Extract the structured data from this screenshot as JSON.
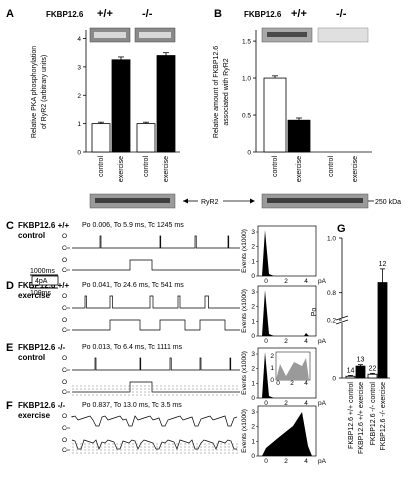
{
  "panels": {
    "A": {
      "letter": "A",
      "genotype_label": "FKBP12.6",
      "genotypes": [
        "+/+",
        "-/-"
      ],
      "ylabel": "Relative PKA phosphorylation of RyR2 (arbitrary units)",
      "yticks": [
        "0",
        "1",
        "2",
        "3",
        "4"
      ],
      "bar_labels": [
        "control",
        "exercise",
        "control",
        "exercise"
      ]
    },
    "B": {
      "letter": "B",
      "genotype_label": "FKBP12.6",
      "genotypes": [
        "+/+",
        "-/-"
      ],
      "ylabel": "Relative amount of FKBP12.6 associated with RyR2",
      "yticks": [
        "0",
        "0.5",
        "1.0",
        "1.5"
      ],
      "bar_labels": [
        "control",
        "exercise",
        "control",
        "exercise"
      ]
    },
    "blot": {
      "label": "RyR2",
      "kda": "250 kDa"
    },
    "C": {
      "letter": "C",
      "line1": "FKBP12.6 +/+",
      "line2": "control",
      "stats": "Po 0.006, To 5.9 ms, Tc 1245 ms"
    },
    "D": {
      "letter": "D",
      "line1": "FKBP12.6 +/+",
      "line2": "exercise",
      "stats": "Po 0.041, To 24.6 ms, Tc 541 ms"
    },
    "E": {
      "letter": "E",
      "line1": "FKBP12.6 -/-",
      "line2": "control",
      "stats": "Po 0.013, To 6.4 ms, Tc 1111 ms"
    },
    "F": {
      "letter": "F",
      "line1": "FKBP12.6 -/-",
      "line2": "exercise",
      "stats": "Po 0.837, To 13.0 ms, Tc 3.5 ms"
    },
    "scale": {
      "time_long": "1000ms",
      "amp": "4pA",
      "time_short": "100ms"
    },
    "trace_marks": {
      "closed": "C",
      "open": "O"
    },
    "hist": {
      "ylabel": "Events (x1000)",
      "xticks": [
        "0",
        "2",
        "4"
      ],
      "xunit": "pA",
      "C_yticks": [
        "0",
        "1",
        "2",
        "3"
      ],
      "D_yticks": [
        "0",
        "1",
        "2",
        "3"
      ],
      "E_yticks": [
        "0",
        "1",
        "2",
        "3"
      ],
      "E_inset_yticks": [
        "0",
        "1",
        "2"
      ],
      "E_inset_xticks": [
        "0",
        "2",
        "4"
      ],
      "F_yticks": [
        "0",
        "1",
        "2",
        "3"
      ]
    },
    "G": {
      "letter": "G",
      "ylabel": "Po",
      "yticks": [
        "0",
        "0.2",
        "0.8",
        "1.0"
      ],
      "bar_labels": [
        "FKBP12.6 +/+ control",
        "FKBP12.6 +/+ exercise",
        "FKBP12.6 -/- control",
        "FKBP12.6 -/- exercise"
      ]
    }
  },
  "chart_data": [
    {
      "type": "bar",
      "categories": [
        "control",
        "exercise",
        "control",
        "exercise"
      ],
      "groups": [
        "+/+",
        "+/+",
        "-/-",
        "-/-"
      ],
      "values": [
        1.0,
        3.25,
        1.0,
        3.4
      ],
      "errors": [
        0.05,
        0.1,
        0.05,
        0.1
      ],
      "ylabel": "Relative PKA phosphorylation of RyR2 (arbitrary units)",
      "ylim": [
        0,
        4.3
      ],
      "fill": [
        "#ffffff",
        "#000000",
        "#ffffff",
        "#000000"
      ]
    },
    {
      "type": "bar",
      "categories": [
        "control",
        "exercise",
        "control",
        "exercise"
      ],
      "groups": [
        "+/+",
        "+/+",
        "-/-",
        "-/-"
      ],
      "values": [
        1.0,
        0.43,
        0,
        0
      ],
      "errors": [
        0.03,
        0.03,
        0,
        0
      ],
      "ylabel": "Relative amount of FKBP12.6 associated with RyR2",
      "ylim": [
        0,
        1.65
      ],
      "fill": [
        "#ffffff",
        "#000000",
        "#ffffff",
        "#000000"
      ]
    },
    {
      "type": "bar",
      "categories": [
        "FKBP12.6 +/+ control",
        "FKBP12.6 +/+ exercise",
        "FKBP12.6 -/- control",
        "FKBP12.6 -/- exercise"
      ],
      "values": [
        0.006,
        0.041,
        0.013,
        0.837
      ],
      "errors": [
        0.003,
        0.005,
        0.003,
        0.05
      ],
      "n_labels": [
        "14",
        "13",
        "22",
        "12"
      ],
      "ylabel": "Po",
      "ylim": [
        0,
        1.0
      ],
      "axis_break": [
        0.2,
        0.7
      ],
      "fill": [
        "#ffffff",
        "#000000",
        "#ffffff",
        "#000000"
      ]
    }
  ]
}
